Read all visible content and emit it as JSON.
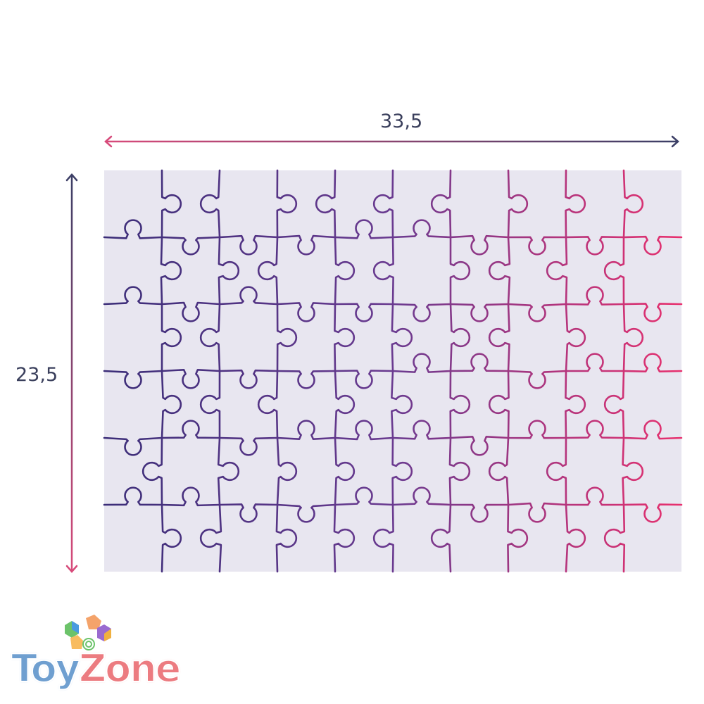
{
  "dimensions": {
    "width_label": "33,5",
    "height_label": "23,5"
  },
  "puzzle": {
    "columns": 10,
    "rows": 6,
    "background": "#e8e6f0",
    "line_color_left": "#3b2d78",
    "line_color_right": "#e8306e"
  },
  "arrows": {
    "navy": "#3b3f66",
    "pink": "#d84a7a"
  },
  "logo": {
    "part1": "Toy",
    "part2": "Zone",
    "blue": "#6f9fd0",
    "pink": "#ec7b80"
  }
}
